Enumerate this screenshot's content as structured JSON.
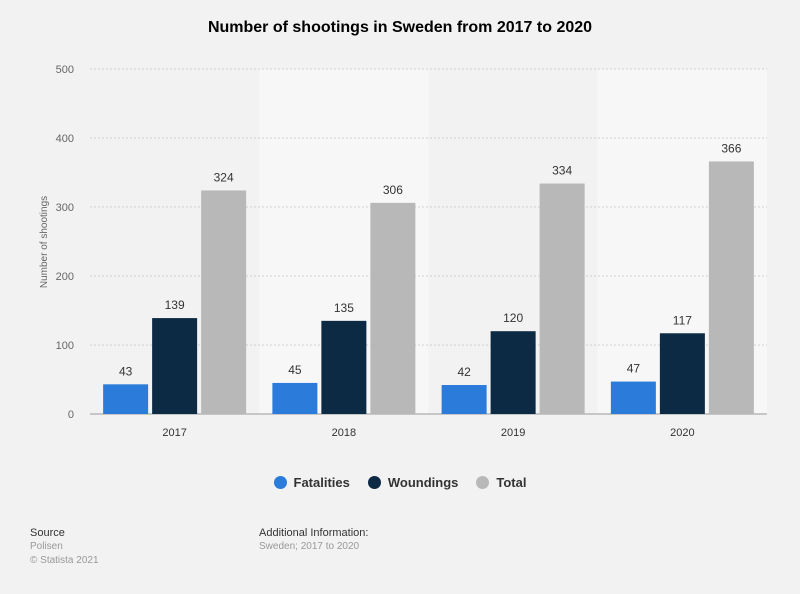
{
  "chart_data": {
    "type": "bar",
    "title": "Number of shootings in Sweden from 2017 to 2020",
    "xlabel": "",
    "ylabel": "Number of shootings",
    "categories": [
      "2017",
      "2018",
      "2019",
      "2020"
    ],
    "series": [
      {
        "name": "Fatalities",
        "color": "#2b7bdb",
        "values": [
          43,
          45,
          42,
          47
        ]
      },
      {
        "name": "Woundings",
        "color": "#0d2a45",
        "values": [
          139,
          135,
          120,
          117
        ]
      },
      {
        "name": "Total",
        "color": "#b8b8b8",
        "values": [
          324,
          306,
          334,
          366
        ]
      }
    ],
    "ylim": [
      0,
      500
    ],
    "yticks": [
      0,
      100,
      200,
      300,
      400,
      500
    ],
    "grid": true,
    "legend_position": "bottom"
  },
  "footer": {
    "source_heading": "Source",
    "source_name": "Polisen",
    "copyright": "© Statista 2021",
    "info_heading": "Additional Information:",
    "info_text": "Sweden; 2017 to 2020"
  }
}
